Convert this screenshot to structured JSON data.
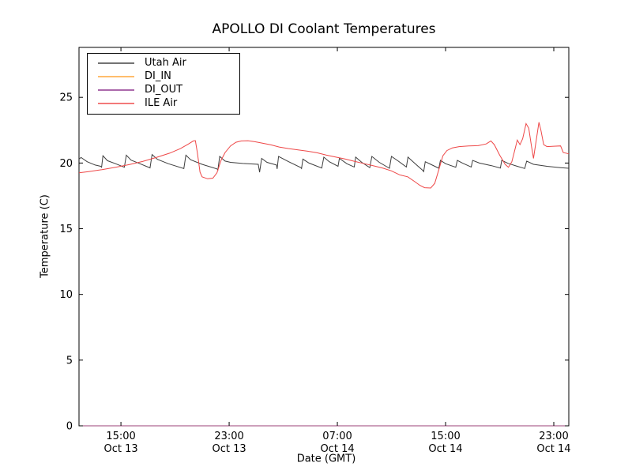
{
  "figure": {
    "background": "#ffffff",
    "frame_color": "#000000"
  },
  "chart_data": {
    "type": "line",
    "title": "APOLLO DI Coolant Temperatures",
    "xlabel": "Date (GMT)",
    "ylabel": "Temperature (C)",
    "x_units": "hours since Oct 13 00:00 GMT",
    "xlim": [
      11.9,
      48.11
    ],
    "ylim": [
      0,
      28.8
    ],
    "yticks": [
      0,
      5,
      10,
      15,
      20,
      25
    ],
    "xticks": [
      {
        "t": 15,
        "time": "15:00",
        "date": "Oct 13"
      },
      {
        "t": 23,
        "time": "23:00",
        "date": "Oct 13"
      },
      {
        "t": 31,
        "time": "07:00",
        "date": "Oct 14"
      },
      {
        "t": 39,
        "time": "15:00",
        "date": "Oct 14"
      },
      {
        "t": 47,
        "time": "23:00",
        "date": "Oct 14"
      }
    ],
    "grid": false,
    "legend_position": "upper left",
    "series": [
      {
        "name": "Utah Air",
        "color": "#3d3d3d",
        "points": [
          [
            11.9,
            20.3
          ],
          [
            12.05,
            20.42
          ],
          [
            12.5,
            20.1
          ],
          [
            13.1,
            19.85
          ],
          [
            13.5,
            19.75
          ],
          [
            13.57,
            19.68
          ],
          [
            13.67,
            20.55
          ],
          [
            14.0,
            20.18
          ],
          [
            14.6,
            19.95
          ],
          [
            15.25,
            19.68
          ],
          [
            15.4,
            20.6
          ],
          [
            15.75,
            20.22
          ],
          [
            16.4,
            19.95
          ],
          [
            17.15,
            19.63
          ],
          [
            17.3,
            20.65
          ],
          [
            17.7,
            20.28
          ],
          [
            18.5,
            19.95
          ],
          [
            19.65,
            19.58
          ],
          [
            19.8,
            20.6
          ],
          [
            20.15,
            20.25
          ],
          [
            21.0,
            19.9
          ],
          [
            22.1,
            19.55
          ],
          [
            22.17,
            19.48
          ],
          [
            22.3,
            20.5
          ],
          [
            22.7,
            20.15
          ],
          [
            23.1,
            20.05
          ],
          [
            24.0,
            19.97
          ],
          [
            25.15,
            19.9
          ],
          [
            25.25,
            19.3
          ],
          [
            25.4,
            20.35
          ],
          [
            25.8,
            20.05
          ],
          [
            26.5,
            19.85
          ],
          [
            26.55,
            19.55
          ],
          [
            26.65,
            20.5
          ],
          [
            27.4,
            20.1
          ],
          [
            28.3,
            19.65
          ],
          [
            28.35,
            19.58
          ],
          [
            28.45,
            20.3
          ],
          [
            28.9,
            20.0
          ],
          [
            29.85,
            19.62
          ],
          [
            30.0,
            20.45
          ],
          [
            30.4,
            20.1
          ],
          [
            31.05,
            19.75
          ],
          [
            31.15,
            20.35
          ],
          [
            31.7,
            19.95
          ],
          [
            32.25,
            19.7
          ],
          [
            32.35,
            20.45
          ],
          [
            32.8,
            20.05
          ],
          [
            33.4,
            19.65
          ],
          [
            33.55,
            20.5
          ],
          [
            34.1,
            20.05
          ],
          [
            34.85,
            19.6
          ],
          [
            35.0,
            20.5
          ],
          [
            35.5,
            20.15
          ],
          [
            36.1,
            19.7
          ],
          [
            36.22,
            20.45
          ],
          [
            36.7,
            20.0
          ],
          [
            37.3,
            19.45
          ],
          [
            37.38,
            19.35
          ],
          [
            37.5,
            20.1
          ],
          [
            37.9,
            19.9
          ],
          [
            38.5,
            19.6
          ],
          [
            38.62,
            20.2
          ],
          [
            39.0,
            19.95
          ],
          [
            39.75,
            19.68
          ],
          [
            39.87,
            20.2
          ],
          [
            40.25,
            20.0
          ],
          [
            40.9,
            19.7
          ],
          [
            41.0,
            20.2
          ],
          [
            41.5,
            20.0
          ],
          [
            42.4,
            19.8
          ],
          [
            43.05,
            19.62
          ],
          [
            43.15,
            20.2
          ],
          [
            43.6,
            19.98
          ],
          [
            44.3,
            19.75
          ],
          [
            44.85,
            19.58
          ],
          [
            45.0,
            20.15
          ],
          [
            45.5,
            19.9
          ],
          [
            46.5,
            19.75
          ],
          [
            47.5,
            19.65
          ],
          [
            48.11,
            19.6
          ]
        ]
      },
      {
        "name": "DI_IN",
        "color": "#ffa433",
        "points": [
          [
            11.9,
            0
          ],
          [
            48.11,
            0
          ]
        ]
      },
      {
        "name": "DI_OUT",
        "color": "#8b2f8b",
        "points": [
          [
            11.9,
            0
          ],
          [
            48.11,
            0
          ]
        ]
      },
      {
        "name": "ILE Air",
        "color": "#ee4747",
        "points": [
          [
            11.9,
            19.25
          ],
          [
            12.6,
            19.35
          ],
          [
            13.6,
            19.5
          ],
          [
            14.6,
            19.68
          ],
          [
            15.6,
            19.88
          ],
          [
            16.6,
            20.12
          ],
          [
            17.6,
            20.42
          ],
          [
            18.6,
            20.75
          ],
          [
            19.4,
            21.1
          ],
          [
            20.0,
            21.45
          ],
          [
            20.35,
            21.68
          ],
          [
            20.5,
            21.7
          ],
          [
            20.65,
            20.8
          ],
          [
            20.85,
            19.3
          ],
          [
            21.0,
            18.95
          ],
          [
            21.4,
            18.8
          ],
          [
            21.8,
            18.85
          ],
          [
            22.1,
            19.25
          ],
          [
            22.4,
            20.2
          ],
          [
            22.7,
            20.8
          ],
          [
            23.1,
            21.3
          ],
          [
            23.5,
            21.58
          ],
          [
            23.9,
            21.68
          ],
          [
            24.4,
            21.7
          ],
          [
            24.9,
            21.62
          ],
          [
            25.5,
            21.5
          ],
          [
            26.1,
            21.38
          ],
          [
            26.7,
            21.22
          ],
          [
            27.4,
            21.1
          ],
          [
            28.1,
            21.0
          ],
          [
            28.8,
            20.9
          ],
          [
            29.5,
            20.78
          ],
          [
            30.2,
            20.6
          ],
          [
            30.9,
            20.45
          ],
          [
            31.6,
            20.3
          ],
          [
            32.3,
            20.12
          ],
          [
            33.0,
            19.95
          ],
          [
            33.7,
            19.78
          ],
          [
            34.4,
            19.6
          ],
          [
            35.0,
            19.4
          ],
          [
            35.6,
            19.1
          ],
          [
            36.2,
            18.95
          ],
          [
            36.7,
            18.6
          ],
          [
            37.1,
            18.3
          ],
          [
            37.45,
            18.12
          ],
          [
            37.9,
            18.1
          ],
          [
            38.2,
            18.45
          ],
          [
            38.5,
            19.5
          ],
          [
            38.8,
            20.55
          ],
          [
            39.1,
            20.95
          ],
          [
            39.5,
            21.15
          ],
          [
            40.0,
            21.25
          ],
          [
            40.7,
            21.3
          ],
          [
            41.4,
            21.32
          ],
          [
            42.0,
            21.45
          ],
          [
            42.35,
            21.68
          ],
          [
            42.6,
            21.4
          ],
          [
            43.0,
            20.6
          ],
          [
            43.4,
            19.9
          ],
          [
            43.65,
            19.68
          ],
          [
            43.9,
            20.1
          ],
          [
            44.1,
            20.9
          ],
          [
            44.3,
            21.75
          ],
          [
            44.5,
            21.4
          ],
          [
            44.7,
            21.85
          ],
          [
            44.95,
            23.0
          ],
          [
            45.15,
            22.65
          ],
          [
            45.35,
            21.3
          ],
          [
            45.5,
            20.35
          ],
          [
            45.7,
            21.7
          ],
          [
            45.9,
            23.1
          ],
          [
            46.05,
            22.5
          ],
          [
            46.25,
            21.4
          ],
          [
            46.5,
            21.25
          ],
          [
            47.0,
            21.28
          ],
          [
            47.5,
            21.3
          ],
          [
            47.7,
            20.8
          ],
          [
            48.11,
            20.7
          ]
        ]
      }
    ]
  }
}
